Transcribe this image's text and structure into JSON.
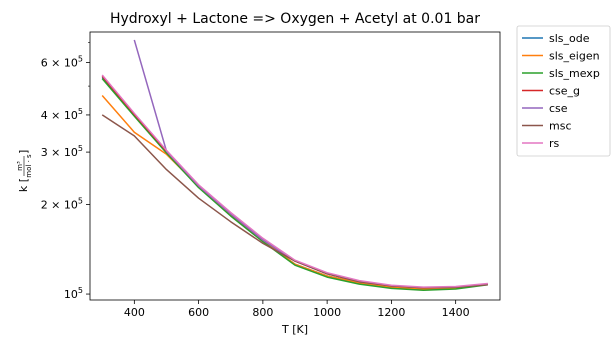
{
  "chart_data": {
    "type": "line",
    "title": "Hydroxyl + Lactone => Oxygen + Acetyl at 0.01 bar",
    "xlabel": "T [K]",
    "ylabel_prefix": "k [",
    "ylabel_num": "m³",
    "ylabel_den": "mol · s",
    "ylabel_suffix": "]",
    "xlim": [
      262,
      1538
    ],
    "ylim": [
      95500,
      760000
    ],
    "yscale": "log",
    "xticks": [
      400,
      600,
      800,
      1000,
      1200,
      1400
    ],
    "xtick_labels": [
      "400",
      "600",
      "800",
      "1000",
      "1200",
      "1400"
    ],
    "yticks": [
      {
        "value": 100000,
        "mantissa": "",
        "exp": "5"
      },
      {
        "value": 200000,
        "mantissa": "2 × ",
        "exp": "5"
      },
      {
        "value": 300000,
        "mantissa": "3 × ",
        "exp": "5"
      },
      {
        "value": 400000,
        "mantissa": "4 × ",
        "exp": "5"
      },
      {
        "value": 600000,
        "mantissa": "6 × ",
        "exp": "5"
      }
    ],
    "ytick_base": "10",
    "legend_position": "outside-upper-right",
    "grid": false,
    "series": [
      {
        "name": "sls_ode",
        "color": "#1f77b4",
        "x": [
          300,
          400,
          500,
          600,
          700,
          800,
          900,
          1000,
          1100,
          1200,
          1300,
          1400,
          1500
        ],
        "y": [
          535000,
          400000,
          300000,
          230000,
          185000,
          151000,
          126000,
          115000,
          109000,
          105500,
          104000,
          105000,
          108000
        ]
      },
      {
        "name": "sls_eigen",
        "color": "#ff7f0e",
        "x": [
          300,
          400,
          500,
          600,
          700,
          800,
          900,
          1000,
          1100,
          1200,
          1300,
          1400,
          1500
        ],
        "y": [
          465000,
          350000,
          295000,
          230000,
          185000,
          151000,
          126000,
          115000,
          109000,
          105500,
          104000,
          105000,
          108000
        ]
      },
      {
        "name": "sls_mexp",
        "color": "#2ca02c",
        "x": [
          300,
          400,
          500,
          600,
          700,
          800,
          900,
          1000,
          1100,
          1200,
          1300,
          1400,
          1500
        ],
        "y": [
          530000,
          396000,
          298000,
          228000,
          183000,
          150000,
          125000,
          114000,
          108000,
          104500,
          103000,
          104000,
          107500
        ]
      },
      {
        "name": "cse_g",
        "color": "#d62728",
        "x": [
          300,
          400,
          500,
          600,
          700,
          800,
          900,
          1000,
          1100,
          1200,
          1300,
          1400,
          1500
        ],
        "y": [
          540000,
          402000,
          302000,
          231000,
          186000,
          152000,
          129000,
          117000,
          110000,
          106500,
          105000,
          105500,
          108000
        ]
      },
      {
        "name": "cse",
        "color": "#9467bd",
        "x": [
          400,
          500,
          600,
          700,
          800,
          900,
          1000,
          1100,
          1200,
          1300,
          1400,
          1500
        ],
        "y": [
          715000,
          302000,
          231000,
          186000,
          152000,
          129000,
          117000,
          110000,
          106500,
          105000,
          105500,
          108000
        ]
      },
      {
        "name": "msc",
        "color": "#8c564b",
        "x": [
          300,
          400,
          500,
          600,
          700,
          800,
          900,
          1000,
          1100,
          1200,
          1300,
          1400,
          1500
        ],
        "y": [
          400000,
          340000,
          262000,
          210000,
          175000,
          148000,
          129000,
          117000,
          110000,
          106500,
          105000,
          105500,
          107500
        ]
      },
      {
        "name": "rs",
        "color": "#e377c2",
        "x": [
          300,
          400,
          500,
          600,
          700,
          800,
          900,
          1000,
          1100,
          1200,
          1300,
          1400,
          1500
        ],
        "y": [
          545000,
          405000,
          304000,
          233000,
          188000,
          154000,
          130000,
          118000,
          111000,
          107000,
          105500,
          106000,
          108500
        ]
      }
    ]
  }
}
